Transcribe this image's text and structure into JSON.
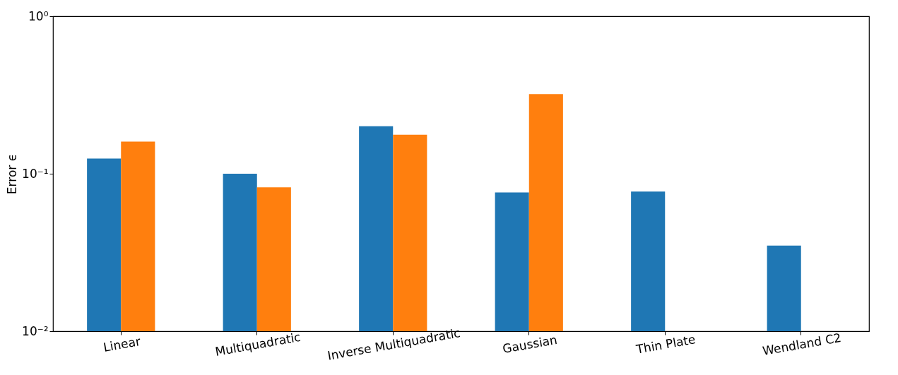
{
  "chart_data": {
    "type": "bar",
    "ylabel": "Error ϵ",
    "categories": [
      "Linear",
      "Multiquadratic",
      "Inverse Multiquadratic",
      "Gaussian",
      "Thin Plate",
      "Wendland C2"
    ],
    "series": [
      {
        "color": "#1f77b4",
        "values": [
          0.125,
          0.1,
          0.2,
          0.076,
          0.077,
          0.035
        ]
      },
      {
        "color": "#ff7f0e",
        "values": [
          0.16,
          0.082,
          0.177,
          0.32,
          null,
          null
        ]
      }
    ],
    "log": "y",
    "ylim": [
      0.01,
      1
    ],
    "yticks": [
      {
        "value": 0.01,
        "label": "10⁻²"
      },
      {
        "value": 0.1,
        "label": "10⁻¹"
      },
      {
        "value": 1,
        "label": "10⁰"
      }
    ],
    "grid": false,
    "legend": false
  }
}
